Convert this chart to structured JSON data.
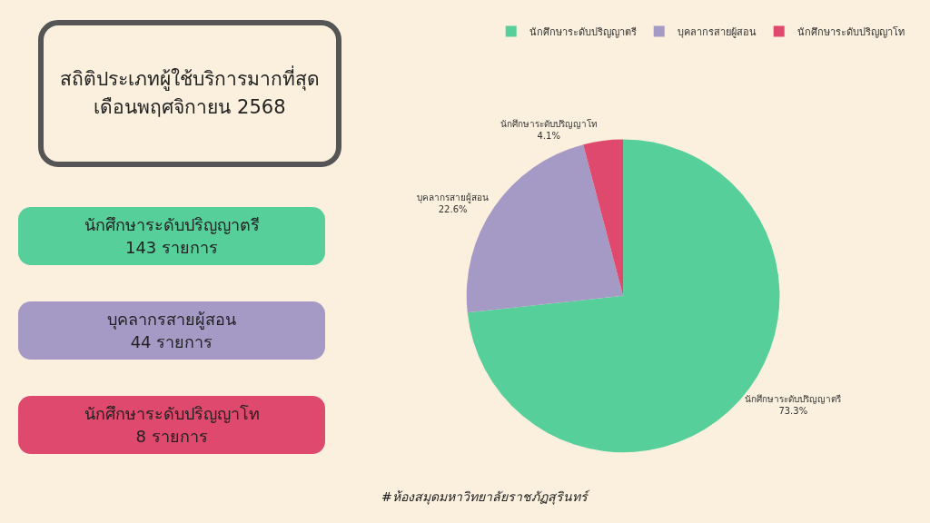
{
  "chart_data": {
    "type": "pie",
    "title": "สถิติประเภทผู้ใช้บริการมากที่สุด",
    "subtitle": "เดือนพฤศจิกายน 2568",
    "categories": [
      "นักศึกษาระดับปริญญาตรี",
      "บุคลากรสายผู้สอน",
      "นักศึกษาระดับปริญญาโท"
    ],
    "values": [
      73.3,
      22.6,
      4.1
    ],
    "colors": [
      "#57cf9a",
      "#a59ac5",
      "#e0496e"
    ],
    "value_labels": [
      "73.3%",
      "22.6%",
      "4.1%"
    ],
    "legend": "top",
    "annotations": [
      "นักศึกษาระดับปริญญาตรี\n143 รายการ",
      "บุคลากรสายผู้สอน\n44 รายการ",
      "นักศึกษาระดับปริญญาโท\n8 รายการ",
      "#ห้องสมุดมหาวิทยาลัยราชภัฏสุรินทร์"
    ]
  }
}
